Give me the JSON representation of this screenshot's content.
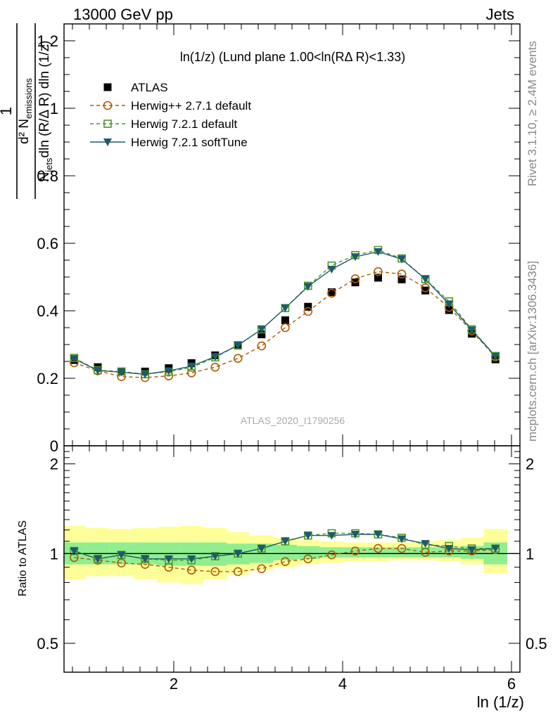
{
  "header": {
    "left": "13000 GeV pp",
    "right": "Jets"
  },
  "plot_title": "ln(1/z) (Lund plane 1.00<ln(RΔ R)<1.33)",
  "watermark": "ATLAS_2020_I1790256",
  "side_labels": {
    "rivet": "Rivet 3.1.10, ≥ 2.4M events",
    "mcplots": "mcplots.cern.ch [arXiv:1306.3436]"
  },
  "y_axis_main": "1/N_jets d²N_emissions / dln(R/ΔR) dln(1/z)",
  "y_axis_ratio": "Ratio to ATLAS",
  "x_axis": "ln (1/z)",
  "colors": {
    "atlas": "#000000",
    "herwigpp": "#b05a00",
    "herwig721": "#4c9a2a",
    "softtune": "#1e5a6e",
    "band_inner": "#90ee90",
    "band_outer": "#ffff99"
  },
  "chart_data": [
    {
      "type": "scatter",
      "panel": "main",
      "xlim": [
        0.7,
        6.1
      ],
      "ylim": [
        0,
        1.25
      ],
      "x_ticks": [
        2,
        4,
        6
      ],
      "y_ticks": [
        0,
        0.2,
        0.4,
        0.6,
        0.8,
        1,
        1.2
      ],
      "x": [
        0.82,
        1.1,
        1.38,
        1.66,
        1.94,
        2.21,
        2.49,
        2.76,
        3.04,
        3.32,
        3.59,
        3.87,
        4.15,
        4.42,
        4.7,
        4.98,
        5.26,
        5.53,
        5.81
      ],
      "series": [
        {
          "name": "ATLAS",
          "marker": "filled-square",
          "values": [
            0.254,
            0.233,
            0.22,
            0.22,
            0.23,
            0.245,
            0.268,
            0.297,
            0.33,
            0.372,
            0.412,
            0.455,
            0.484,
            0.498,
            0.493,
            0.46,
            0.402,
            0.332,
            0.256
          ]
        },
        {
          "name": "Herwig++ 2.7.1 default",
          "marker": "open-circle",
          "line": "dashed",
          "values": [
            0.246,
            0.222,
            0.205,
            0.202,
            0.207,
            0.216,
            0.233,
            0.259,
            0.296,
            0.35,
            0.398,
            0.452,
            0.495,
            0.516,
            0.509,
            0.468,
            0.41,
            0.34,
            0.263
          ]
        },
        {
          "name": "Herwig 7.2.1 default",
          "marker": "open-square",
          "line": "dashed",
          "values": [
            0.26,
            0.224,
            0.22,
            0.212,
            0.22,
            0.232,
            0.262,
            0.298,
            0.345,
            0.408,
            0.474,
            0.534,
            0.565,
            0.58,
            0.555,
            0.494,
            0.428,
            0.345,
            0.266
          ]
        },
        {
          "name": "Herwig 7.2.1 softTune",
          "marker": "filled-triangle-down",
          "line": "solid",
          "values": [
            0.258,
            0.223,
            0.218,
            0.212,
            0.222,
            0.236,
            0.264,
            0.298,
            0.345,
            0.408,
            0.472,
            0.523,
            0.56,
            0.575,
            0.553,
            0.494,
            0.42,
            0.343,
            0.265
          ]
        }
      ]
    },
    {
      "type": "line",
      "panel": "ratio",
      "ylabel": "Ratio to ATLAS",
      "xlabel": "ln (1/z)",
      "xlim": [
        0.7,
        6.1
      ],
      "ylim": [
        0.4,
        2.3
      ],
      "y_scale": "log",
      "y_tick_labels": [
        0.5,
        1,
        2
      ],
      "reference": 1,
      "bin_edges": [
        0.69,
        0.96,
        1.24,
        1.52,
        1.8,
        2.08,
        2.35,
        2.63,
        2.9,
        3.18,
        3.46,
        3.73,
        4.01,
        4.29,
        4.56,
        4.84,
        5.12,
        5.4,
        5.67,
        5.95
      ],
      "band_inner": [
        [
          0.92,
          1.09
        ],
        [
          0.92,
          1.09
        ],
        [
          0.92,
          1.09
        ],
        [
          0.92,
          1.09
        ],
        [
          0.91,
          1.09
        ],
        [
          0.91,
          1.09
        ],
        [
          0.91,
          1.09
        ],
        [
          0.92,
          1.08
        ],
        [
          0.93,
          1.08
        ],
        [
          0.95,
          1.07
        ],
        [
          0.96,
          1.06
        ],
        [
          0.97,
          1.05
        ],
        [
          0.97,
          1.05
        ],
        [
          0.97,
          1.05
        ],
        [
          0.97,
          1.05
        ],
        [
          0.97,
          1.05
        ],
        [
          0.97,
          1.05
        ],
        [
          0.96,
          1.06
        ],
        [
          0.92,
          1.09
        ]
      ],
      "band_outer": [
        [
          0.82,
          1.24
        ],
        [
          0.84,
          1.22
        ],
        [
          0.84,
          1.21
        ],
        [
          0.82,
          1.22
        ],
        [
          0.8,
          1.23
        ],
        [
          0.79,
          1.24
        ],
        [
          0.82,
          1.22
        ],
        [
          0.85,
          1.18
        ],
        [
          0.88,
          1.15
        ],
        [
          0.9,
          1.13
        ],
        [
          0.92,
          1.11
        ],
        [
          0.93,
          1.1
        ],
        [
          0.94,
          1.09
        ],
        [
          0.94,
          1.09
        ],
        [
          0.95,
          1.09
        ],
        [
          0.95,
          1.1
        ],
        [
          0.94,
          1.11
        ],
        [
          0.92,
          1.13
        ],
        [
          0.86,
          1.21
        ]
      ],
      "series": [
        {
          "name": "Herwig++ 2.7.1 default",
          "values": [
            0.97,
            0.95,
            0.93,
            0.92,
            0.9,
            0.88,
            0.87,
            0.87,
            0.89,
            0.94,
            0.96,
            0.99,
            1.02,
            1.04,
            1.04,
            1.01,
            1.02,
            1.02,
            1.03
          ]
        },
        {
          "name": "Herwig 7.2.1 default",
          "values": [
            1.02,
            0.96,
            0.99,
            0.96,
            0.95,
            0.95,
            0.98,
            1.0,
            1.04,
            1.1,
            1.15,
            1.17,
            1.17,
            1.16,
            1.13,
            1.07,
            1.06,
            1.04,
            1.04
          ]
        },
        {
          "name": "Herwig 7.2.1 softTune",
          "values": [
            1.02,
            0.96,
            0.99,
            0.96,
            0.96,
            0.96,
            0.98,
            1.0,
            1.04,
            1.1,
            1.15,
            1.15,
            1.16,
            1.16,
            1.12,
            1.08,
            1.04,
            1.03,
            1.04
          ]
        }
      ]
    }
  ]
}
